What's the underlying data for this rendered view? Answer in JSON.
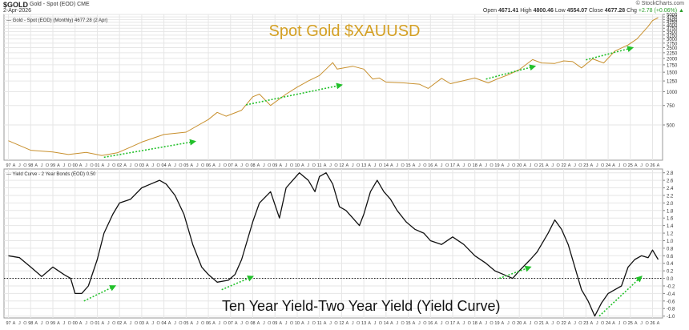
{
  "header": {
    "ticker": "$GOLD",
    "name": "Gold - Spot (EOD) CME",
    "date": "2-Apr-2026",
    "copyright": "© StockCharts.com",
    "quote": {
      "open_label": "Open",
      "open": "4671.41",
      "high_label": "High",
      "high": "4800.46",
      "low_label": "Low",
      "low": "4554.07",
      "close_label": "Close",
      "close": "4677.28",
      "chg_label": "Chg",
      "chg": "+2.78 (+0.06%) ▲"
    }
  },
  "chart_data": [
    {
      "type": "line",
      "title": "Spot Gold $XAUUSD",
      "legend": "— Gold - Spot (EOD) (Monthly) 4677.28 (2 Apr)",
      "legend_position": "top-left",
      "scale": "log",
      "ylim": [
        240,
        5000
      ],
      "y_ticks": [
        500,
        750,
        1000,
        1250,
        1500,
        1750,
        2000,
        2250,
        2500,
        2750,
        3000,
        3250,
        3500,
        3750,
        4000,
        4250,
        4500,
        4750,
        5000
      ],
      "y_tick_labels": [
        "500",
        "750",
        "1000",
        "1250",
        "1500",
        "1750",
        "2000",
        "2250",
        "2500",
        "2750",
        "3000",
        "3250",
        "3500",
        "3750",
        "4000",
        "4250",
        "4500",
        "4750",
        "5000"
      ],
      "color": "#c8902e",
      "series": [
        {
          "x": [
            1997.0,
            1998.0,
            1999.0,
            1999.7,
            2000.5,
            2001.2,
            2001.9,
            2002.5,
            2003.0,
            2004.0,
            2005.0,
            2006.0,
            2006.4,
            2006.8,
            2007.5,
            2008.0,
            2008.3,
            2008.8,
            2009.5,
            2010.0,
            2010.5,
            2011.0,
            2011.6,
            2011.8,
            2012.5,
            2013.0,
            2013.4,
            2013.7,
            2014.0,
            2014.8,
            2015.5,
            2015.9,
            2016.5,
            2016.9,
            2017.5,
            2018.0,
            2018.6,
            2019.0,
            2019.5,
            2020.0,
            2020.6,
            2021.0,
            2021.6,
            2022.0,
            2022.4,
            2022.8,
            2023.3,
            2023.8,
            2024.3,
            2024.9,
            2025.3,
            2025.8,
            2026.0,
            2026.25
          ],
          "y": [
            360,
            295,
            285,
            270,
            282,
            265,
            280,
            315,
            350,
            410,
            430,
            560,
            650,
            600,
            680,
            900,
            950,
            750,
            950,
            1100,
            1250,
            1400,
            1830,
            1600,
            1700,
            1600,
            1300,
            1330,
            1220,
            1200,
            1170,
            1070,
            1320,
            1180,
            1260,
            1330,
            1200,
            1300,
            1420,
            1580,
            1950,
            1820,
            1800,
            1900,
            1870,
            1640,
            1980,
            1820,
            2330,
            2650,
            3000,
            3900,
            4400,
            4677
          ]
        }
      ],
      "annotations": [
        {
          "type": "trend-arrow",
          "x": [
            2001.3,
            2005.4
          ],
          "y": [
            255,
            355
          ]
        },
        {
          "type": "trend-arrow",
          "x": [
            2007.7,
            2012.0
          ],
          "y": [
            760,
            1150
          ]
        },
        {
          "type": "trend-arrow",
          "x": [
            2018.5,
            2020.7
          ],
          "y": [
            1300,
            1700
          ]
        },
        {
          "type": "trend-arrow",
          "x": [
            2023.0,
            2025.1
          ],
          "y": [
            1940,
            2500
          ]
        }
      ]
    },
    {
      "type": "line",
      "title": "Ten Year Yield-Two Year Yield (Yield Curve)",
      "legend": "— Yield Curve - 2 Year Bonds (EOD) 0.50",
      "legend_position": "top-left",
      "ylim": [
        -1.05,
        2.9
      ],
      "y_ticks": [
        -1.0,
        -0.8,
        -0.6,
        -0.4,
        -0.2,
        0.0,
        0.2,
        0.4,
        0.6,
        0.8,
        1.0,
        1.2,
        1.4,
        1.6,
        1.8,
        2.0,
        2.2,
        2.4,
        2.6,
        2.8
      ],
      "y_tick_labels": [
        "-1.0",
        "-0.8",
        "-0.6",
        "-0.4",
        "-0.2",
        "0.0",
        "0.2",
        "0.4",
        "0.6",
        "0.8",
        "1.0",
        "1.2",
        "1.4",
        "1.6",
        "1.8",
        "2.0",
        "2.2",
        "2.4",
        "2.6",
        "2.8"
      ],
      "zero_line": true,
      "color": "#111111",
      "series": [
        {
          "x": [
            1997.0,
            1997.5,
            1998.0,
            1998.5,
            1999.0,
            1999.5,
            1999.8,
            2000.0,
            2000.3,
            2000.6,
            2001.0,
            2001.3,
            2001.7,
            2002.0,
            2002.5,
            2003.0,
            2003.4,
            2003.8,
            2004.1,
            2004.5,
            2004.9,
            2005.3,
            2005.7,
            2006.0,
            2006.4,
            2006.9,
            2007.2,
            2007.5,
            2008.0,
            2008.3,
            2008.8,
            2009.2,
            2009.5,
            2009.8,
            2010.1,
            2010.5,
            2010.8,
            2011.0,
            2011.3,
            2011.6,
            2011.9,
            2012.2,
            2012.5,
            2012.8,
            2013.0,
            2013.3,
            2013.6,
            2013.9,
            2014.2,
            2014.5,
            2014.9,
            2015.3,
            2015.7,
            2016.0,
            2016.5,
            2017.0,
            2017.5,
            2018.0,
            2018.5,
            2018.9,
            2019.3,
            2019.7,
            2020.0,
            2020.5,
            2020.8,
            2021.0,
            2021.3,
            2021.6,
            2021.9,
            2022.2,
            2022.5,
            2022.8,
            2023.1,
            2023.4,
            2023.7,
            2024.0,
            2024.3,
            2024.6,
            2024.9,
            2025.2,
            2025.5,
            2025.8,
            2026.0,
            2026.25
          ],
          "y": [
            0.6,
            0.55,
            0.3,
            0.05,
            0.3,
            0.1,
            0.0,
            -0.4,
            -0.4,
            -0.2,
            0.5,
            1.2,
            1.7,
            2.0,
            2.1,
            2.4,
            2.5,
            2.6,
            2.5,
            2.2,
            1.7,
            0.9,
            0.3,
            0.1,
            -0.1,
            -0.05,
            0.1,
            0.5,
            1.5,
            2.0,
            2.3,
            1.6,
            2.4,
            2.6,
            2.8,
            2.6,
            2.3,
            2.7,
            2.8,
            2.5,
            1.9,
            1.8,
            1.6,
            1.4,
            1.7,
            2.3,
            2.6,
            2.3,
            2.1,
            1.8,
            1.5,
            1.3,
            1.2,
            1.0,
            0.9,
            1.1,
            0.9,
            0.6,
            0.4,
            0.2,
            0.1,
            0.0,
            0.2,
            0.5,
            0.7,
            0.9,
            1.2,
            1.55,
            1.3,
            0.9,
            0.3,
            -0.3,
            -0.6,
            -1.0,
            -0.65,
            -0.4,
            -0.3,
            -0.2,
            0.3,
            0.5,
            0.6,
            0.55,
            0.75,
            0.5
          ]
        }
      ],
      "annotations": [
        {
          "type": "trend-arrow",
          "x": [
            2000.4,
            2001.8
          ],
          "y": [
            -0.6,
            -0.2
          ]
        },
        {
          "type": "trend-arrow",
          "x": [
            2006.6,
            2008.0
          ],
          "y": [
            -0.3,
            0.05
          ]
        },
        {
          "type": "trend-arrow",
          "x": [
            2019.1,
            2020.5
          ],
          "y": [
            0.0,
            0.3
          ]
        },
        {
          "type": "trend-arrow",
          "x": [
            2023.6,
            2025.5
          ],
          "y": [
            -1.0,
            0.05
          ]
        }
      ]
    }
  ],
  "x_axis": {
    "month_labels": [
      "A",
      "J",
      "O"
    ],
    "year_labels": [
      "97",
      "98",
      "99",
      "00",
      "01",
      "02",
      "03",
      "04",
      "05",
      "06",
      "07",
      "08",
      "09",
      "10",
      "11",
      "12",
      "13",
      "14",
      "15",
      "16",
      "17",
      "18",
      "19",
      "20",
      "21",
      "22",
      "23",
      "24",
      "25",
      "26"
    ],
    "years": [
      1997,
      1998,
      1999,
      2000,
      2001,
      2002,
      2003,
      2004,
      2005,
      2006,
      2007,
      2008,
      2009,
      2010,
      2011,
      2012,
      2013,
      2014,
      2015,
      2016,
      2017,
      2018,
      2019,
      2020,
      2021,
      2022,
      2023,
      2024,
      2025,
      2026
    ],
    "range": [
      1996.8,
      2026.45
    ]
  },
  "colors": {
    "gold": "#c8902e",
    "title_gold": "#d4a024",
    "curve": "#111111",
    "arrow": "#22c02a",
    "grid": "#e6e6e6"
  }
}
